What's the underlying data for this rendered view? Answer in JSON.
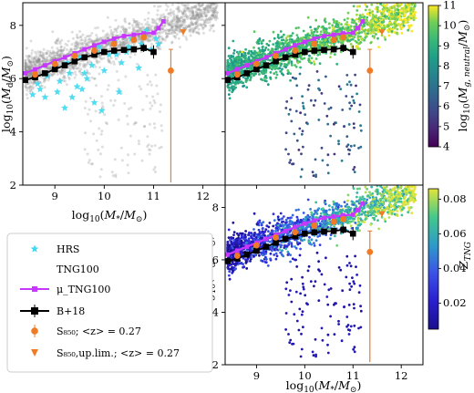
{
  "figure": {
    "panels": [
      {
        "id": "a",
        "ylabel": "log₁₀(M_d/M_⊙)",
        "xlabel": "log₁₀(M_*/M_⊙)"
      },
      {
        "id": "b",
        "ylabel": "",
        "xlabel": ""
      },
      {
        "id": "c",
        "ylabel": "log₁₀(M_d/M_⊙)",
        "xlabel": "log₁₀(M_*/M_⊙)"
      }
    ],
    "colorbars": [
      {
        "label": "log₁₀(M_g,neutral/M_⊙)",
        "min": 4,
        "max": 11,
        "ticks": [
          "4",
          "5",
          "6",
          "7",
          "8",
          "9",
          "10",
          "11"
        ],
        "colormap": "viridis"
      },
      {
        "label": "Z_TNG",
        "min": 0.005,
        "max": 0.086,
        "ticks": [
          "0.02",
          "0.04",
          "0.06",
          "0.08"
        ],
        "colormap": "plasma-like"
      }
    ],
    "legend": [
      {
        "label": "HRS",
        "marker": "star",
        "color": "#3fd8f0"
      },
      {
        "label": "TNG100",
        "marker": "none",
        "color": "#000000"
      },
      {
        "label": "μ_TNG100",
        "marker": "square-line",
        "color": "#c837ff"
      },
      {
        "label": "B+18",
        "marker": "square-errorbar",
        "color": "#000000"
      },
      {
        "label": "S₈₅₀; <z> = 0.27",
        "marker": "circle",
        "color": "#f07b24"
      },
      {
        "label": "S₈₅₀,up.lim.; <z> = 0.27",
        "marker": "triangle-down",
        "color": "#f07b24"
      }
    ],
    "colors": {
      "tng_grey": "#8a8a8a",
      "hrs": "#3fd8f0",
      "mu": "#c837ff",
      "b18": "#000000",
      "s850": "#f07b24"
    }
  },
  "chart_data": {
    "type": "scatter",
    "xlim": [
      8.35,
      12.45
    ],
    "ylim": [
      2.0,
      8.85
    ],
    "xticks": [
      9,
      10,
      11,
      12
    ],
    "yticks": [
      2,
      4,
      6,
      8
    ],
    "series": [
      {
        "name": "μ_TNG100",
        "x": [
          8.4,
          8.6,
          8.8,
          9.0,
          9.2,
          9.4,
          9.6,
          9.8,
          10.0,
          10.2,
          10.4,
          10.6,
          10.8,
          11.0,
          11.1,
          11.2
        ],
        "y": [
          6.2,
          6.35,
          6.5,
          6.65,
          6.8,
          6.95,
          7.1,
          7.25,
          7.38,
          7.5,
          7.6,
          7.65,
          7.7,
          7.72,
          7.9,
          8.15
        ]
      },
      {
        "name": "B+18",
        "x": [
          8.4,
          8.6,
          8.8,
          9.0,
          9.2,
          9.4,
          9.6,
          9.8,
          10.0,
          10.2,
          10.4,
          10.6,
          10.8,
          11.0
        ],
        "y": [
          5.95,
          6.05,
          6.2,
          6.35,
          6.5,
          6.65,
          6.8,
          6.9,
          7.0,
          7.05,
          7.08,
          7.1,
          7.15,
          7.0
        ],
        "yerr": [
          0.1,
          0.1,
          0.1,
          0.1,
          0.1,
          0.08,
          0.08,
          0.08,
          0.08,
          0.08,
          0.1,
          0.12,
          0.15,
          0.25
        ]
      },
      {
        "name": "S₈₅₀; <z> = 0.27",
        "x": [
          8.6,
          9.0,
          9.4,
          9.8,
          10.2,
          10.6,
          10.8,
          11.35
        ],
        "y": [
          6.15,
          6.55,
          6.85,
          7.05,
          7.3,
          7.45,
          7.55,
          6.3
        ],
        "yerr_low": [
          0.1,
          0.1,
          0.1,
          0.1,
          0.1,
          0.1,
          0.1,
          4.2
        ],
        "yerr_high": [
          0.1,
          0.1,
          0.1,
          0.1,
          0.1,
          0.1,
          0.1,
          0.8
        ]
      },
      {
        "name": "S₈₅₀,up.lim.; <z> = 0.27",
        "x": [
          11.6
        ],
        "y": [
          7.75
        ]
      },
      {
        "name": "HRS",
        "x": [
          8.55,
          8.7,
          8.85,
          9.0,
          9.1,
          9.25,
          9.35,
          9.5,
          9.6,
          9.75,
          9.85,
          9.95,
          10.1,
          10.2,
          10.35,
          10.5,
          10.6,
          10.75,
          10.85,
          10.95,
          11.05,
          9.2,
          9.45,
          9.8,
          10.0,
          10.3,
          10.45,
          8.8,
          9.05,
          9.65,
          9.9,
          10.25,
          10.55,
          10.7,
          11.1,
          8.65,
          9.3,
          9.55
        ],
        "y": [
          5.4,
          5.6,
          6.1,
          6.4,
          5.9,
          6.6,
          5.3,
          6.8,
          6.2,
          6.5,
          7.0,
          4.8,
          6.9,
          7.4,
          6.6,
          7.2,
          7.6,
          7.3,
          7.8,
          7.1,
          7.5,
          4.9,
          5.7,
          5.1,
          6.3,
          5.5,
          7.0,
          5.3,
          5.5,
          6.0,
          7.2,
          6.9,
          7.5,
          6.4,
          7.3,
          5.8,
          6.2,
          5.6
        ]
      }
    ]
  }
}
